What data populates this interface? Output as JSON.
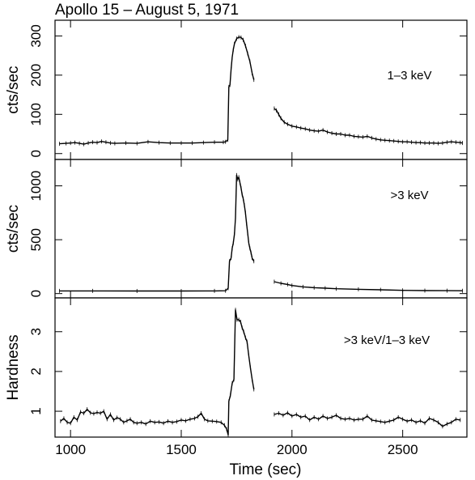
{
  "chart_data": {
    "type": "line",
    "title": "Apollo 15 – August 5, 1971",
    "xlabel": "Time (sec)",
    "xlim": [
      930,
      2790
    ],
    "xticks": [
      1000,
      1500,
      2000,
      2500
    ],
    "xtick_labels": [
      "1000",
      "1500",
      "2000",
      "2500"
    ],
    "panels": [
      {
        "id": "soft",
        "ylabel": "cts/sec",
        "annotation": "1–3 keV",
        "ylim": [
          -15,
          340
        ],
        "yticks": [
          0,
          100,
          200,
          300
        ],
        "ytick_labels": [
          "0",
          "100",
          "200",
          "300"
        ],
        "series": [
          {
            "segment": "pre-gap",
            "points": [
              [
                950,
                25
              ],
              [
                980,
                26
              ],
              [
                1000,
                27
              ],
              [
                1020,
                28
              ],
              [
                1040,
                26
              ],
              [
                1060,
                24
              ],
              [
                1080,
                27
              ],
              [
                1100,
                29
              ],
              [
                1120,
                28
              ],
              [
                1140,
                31
              ],
              [
                1160,
                29
              ],
              [
                1180,
                27
              ],
              [
                1200,
                26
              ],
              [
                1250,
                27
              ],
              [
                1300,
                26
              ],
              [
                1350,
                30
              ],
              [
                1400,
                28
              ],
              [
                1450,
                27
              ],
              [
                1500,
                27
              ],
              [
                1550,
                27
              ],
              [
                1600,
                28
              ],
              [
                1650,
                29
              ],
              [
                1690,
                29
              ],
              [
                1700,
                30
              ],
              [
                1710,
                35
              ],
              [
                1715,
                170
              ],
              [
                1720,
                175
              ],
              [
                1725,
                215
              ],
              [
                1730,
                245
              ],
              [
                1735,
                265
              ],
              [
                1740,
                280
              ],
              [
                1750,
                293
              ],
              [
                1760,
                297
              ],
              [
                1770,
                296
              ],
              [
                1780,
                290
              ],
              [
                1790,
                275
              ],
              [
                1800,
                255
              ],
              [
                1810,
                235
              ],
              [
                1820,
                205
              ],
              [
                1828,
                188
              ]
            ]
          },
          {
            "segment": "post-gap",
            "points": [
              [
                1920,
                115
              ],
              [
                1930,
                110
              ],
              [
                1940,
                100
              ],
              [
                1950,
                90
              ],
              [
                1965,
                80
              ],
              [
                1980,
                75
              ],
              [
                2000,
                70
              ],
              [
                2020,
                68
              ],
              [
                2040,
                65
              ],
              [
                2060,
                63
              ],
              [
                2080,
                60
              ],
              [
                2100,
                58
              ],
              [
                2120,
                57
              ],
              [
                2140,
                60
              ],
              [
                2160,
                55
              ],
              [
                2180,
                52
              ],
              [
                2200,
                50
              ],
              [
                2220,
                50
              ],
              [
                2240,
                47
              ],
              [
                2260,
                47
              ],
              [
                2280,
                44
              ],
              [
                2300,
                43
              ],
              [
                2320,
                42
              ],
              [
                2340,
                44
              ],
              [
                2360,
                40
              ],
              [
                2380,
                37
              ],
              [
                2400,
                35
              ],
              [
                2420,
                34
              ],
              [
                2440,
                33
              ],
              [
                2460,
                32
              ],
              [
                2480,
                31
              ],
              [
                2500,
                30
              ],
              [
                2520,
                30
              ],
              [
                2540,
                29
              ],
              [
                2560,
                28
              ],
              [
                2580,
                28
              ],
              [
                2600,
                27
              ],
              [
                2620,
                27
              ],
              [
                2640,
                27
              ],
              [
                2660,
                26
              ],
              [
                2680,
                27
              ],
              [
                2700,
                29
              ],
              [
                2720,
                30
              ],
              [
                2740,
                29
              ],
              [
                2760,
                28
              ],
              [
                2770,
                27
              ]
            ]
          }
        ]
      },
      {
        "id": "hard",
        "ylabel": "cts/sec",
        "annotation": ">3 keV",
        "ylim": [
          -40,
          1245
        ],
        "yticks": [
          0,
          500,
          1000
        ],
        "ytick_labels": [
          "0",
          "500",
          "1000"
        ],
        "series": [
          {
            "segment": "pre-gap",
            "points": [
              [
                950,
                25
              ],
              [
                1100,
                25
              ],
              [
                1300,
                24
              ],
              [
                1500,
                24
              ],
              [
                1650,
                25
              ],
              [
                1700,
                26
              ],
              [
                1712,
                50
              ],
              [
                1718,
                300
              ],
              [
                1725,
                330
              ],
              [
                1730,
                420
              ],
              [
                1735,
                470
              ],
              [
                1740,
                550
              ],
              [
                1745,
                700
              ],
              [
                1750,
                1100
              ],
              [
                1755,
                1060
              ],
              [
                1760,
                1080
              ],
              [
                1765,
                1030
              ],
              [
                1770,
                980
              ],
              [
                1775,
                920
              ],
              [
                1780,
                880
              ],
              [
                1785,
                820
              ],
              [
                1790,
                750
              ],
              [
                1795,
                650
              ],
              [
                1800,
                560
              ],
              [
                1805,
                470
              ],
              [
                1810,
                420
              ],
              [
                1815,
                380
              ],
              [
                1820,
                330
              ],
              [
                1828,
                300
              ]
            ]
          },
          {
            "segment": "post-gap",
            "points": [
              [
                1920,
                110
              ],
              [
                1950,
                95
              ],
              [
                1980,
                85
              ],
              [
                2000,
                75
              ],
              [
                2050,
                62
              ],
              [
                2100,
                55
              ],
              [
                2150,
                50
              ],
              [
                2200,
                45
              ],
              [
                2300,
                40
              ],
              [
                2400,
                35
              ],
              [
                2500,
                30
              ],
              [
                2600,
                28
              ],
              [
                2700,
                27
              ],
              [
                2770,
                26
              ]
            ]
          }
        ]
      },
      {
        "id": "ratio",
        "ylabel": "Hardness",
        "annotation": ">3 keV/1–3 keV",
        "ylim": [
          0.35,
          3.85
        ],
        "yticks": [
          1,
          2,
          3
        ],
        "ytick_labels": [
          "1",
          "2",
          "3"
        ],
        "series": [
          {
            "segment": "pre-gap",
            "points": [
              [
                955,
                0.75
              ],
              [
                970,
                0.82
              ],
              [
                985,
                0.72
              ],
              [
                1000,
                0.7
              ],
              [
                1015,
                0.85
              ],
              [
                1030,
                0.78
              ],
              [
                1045,
                0.98
              ],
              [
                1060,
                0.95
              ],
              [
                1075,
                1.05
              ],
              [
                1090,
                0.96
              ],
              [
                1105,
                0.94
              ],
              [
                1120,
                0.97
              ],
              [
                1135,
                0.95
              ],
              [
                1150,
                1.0
              ],
              [
                1165,
                0.8
              ],
              [
                1180,
                0.92
              ],
              [
                1195,
                0.78
              ],
              [
                1210,
                0.84
              ],
              [
                1225,
                0.8
              ],
              [
                1240,
                0.72
              ],
              [
                1255,
                0.76
              ],
              [
                1270,
                0.8
              ],
              [
                1285,
                0.72
              ],
              [
                1300,
                0.7
              ],
              [
                1320,
                0.72
              ],
              [
                1340,
                0.68
              ],
              [
                1360,
                0.75
              ],
              [
                1380,
                0.72
              ],
              [
                1400,
                0.73
              ],
              [
                1420,
                0.7
              ],
              [
                1440,
                0.75
              ],
              [
                1460,
                0.72
              ],
              [
                1480,
                0.74
              ],
              [
                1500,
                0.78
              ],
              [
                1520,
                0.76
              ],
              [
                1540,
                0.8
              ],
              [
                1560,
                0.82
              ],
              [
                1575,
                0.86
              ],
              [
                1590,
                0.95
              ],
              [
                1605,
                0.8
              ],
              [
                1620,
                0.76
              ],
              [
                1640,
                0.75
              ],
              [
                1660,
                0.74
              ],
              [
                1680,
                0.72
              ],
              [
                1695,
                0.65
              ],
              [
                1705,
                0.55
              ],
              [
                1712,
                0.4
              ],
              [
                1715,
                1.25
              ],
              [
                1722,
                1.4
              ],
              [
                1730,
                1.7
              ],
              [
                1738,
                1.8
              ],
              [
                1745,
                3.55
              ],
              [
                1752,
                3.3
              ],
              [
                1760,
                3.3
              ],
              [
                1768,
                3.25
              ],
              [
                1775,
                3.1
              ],
              [
                1782,
                3.0
              ],
              [
                1790,
                2.85
              ],
              [
                1797,
                2.75
              ],
              [
                1805,
                2.4
              ],
              [
                1812,
                2.1
              ],
              [
                1820,
                1.8
              ],
              [
                1828,
                1.55
              ]
            ]
          },
          {
            "segment": "post-gap",
            "points": [
              [
                1920,
                0.92
              ],
              [
                1940,
                0.95
              ],
              [
                1960,
                0.9
              ],
              [
                1980,
                0.96
              ],
              [
                2000,
                0.88
              ],
              [
                2020,
                0.92
              ],
              [
                2040,
                0.85
              ],
              [
                2060,
                0.88
              ],
              [
                2080,
                0.78
              ],
              [
                2100,
                0.85
              ],
              [
                2120,
                0.8
              ],
              [
                2140,
                0.88
              ],
              [
                2160,
                0.82
              ],
              [
                2180,
                0.85
              ],
              [
                2200,
                0.9
              ],
              [
                2220,
                0.82
              ],
              [
                2240,
                0.8
              ],
              [
                2260,
                0.82
              ],
              [
                2280,
                0.78
              ],
              [
                2300,
                0.8
              ],
              [
                2320,
                0.8
              ],
              [
                2340,
                0.88
              ],
              [
                2360,
                0.78
              ],
              [
                2380,
                0.76
              ],
              [
                2400,
                0.74
              ],
              [
                2420,
                0.72
              ],
              [
                2440,
                0.75
              ],
              [
                2460,
                0.78
              ],
              [
                2480,
                0.85
              ],
              [
                2500,
                0.8
              ],
              [
                2520,
                0.75
              ],
              [
                2540,
                0.78
              ],
              [
                2560,
                0.72
              ],
              [
                2580,
                0.76
              ],
              [
                2600,
                0.7
              ],
              [
                2620,
                0.82
              ],
              [
                2640,
                0.78
              ],
              [
                2660,
                0.72
              ],
              [
                2680,
                0.62
              ],
              [
                2700,
                0.68
              ],
              [
                2720,
                0.72
              ],
              [
                2740,
                0.8
              ],
              [
                2760,
                0.78
              ]
            ]
          }
        ]
      }
    ]
  }
}
